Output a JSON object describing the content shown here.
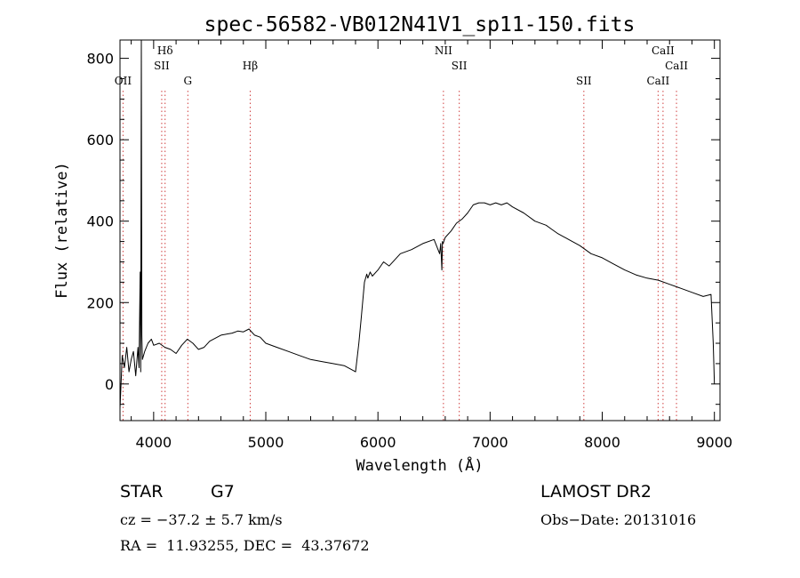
{
  "chart_data": {
    "type": "line",
    "title": "spec-56582-VB012N41V1_sp11-150.fits",
    "xlabel": "Wavelength (Å)",
    "ylabel": "Flux (relative)",
    "xlim": [
      3700,
      9050
    ],
    "ylim": [
      -90,
      845
    ],
    "x_ticks": [
      4000,
      5000,
      6000,
      7000,
      8000,
      9000
    ],
    "y_ticks": [
      0,
      200,
      400,
      600,
      800
    ],
    "grid": false,
    "legend": "none",
    "line_color": "#000000",
    "marker_color": "#d04040",
    "line_markers": [
      {
        "label": "OII",
        "x": 3727,
        "row": 3
      },
      {
        "label": "Hδ",
        "x": 4102,
        "row": 1
      },
      {
        "label": "SII",
        "x": 4072,
        "row": 2
      },
      {
        "label": "G",
        "x": 4305,
        "row": 3
      },
      {
        "label": "Hβ",
        "x": 4861,
        "row": 2
      },
      {
        "label": "NII",
        "x": 6584,
        "row": 1
      },
      {
        "label": "SII",
        "x": 6725,
        "row": 2
      },
      {
        "label": "SII",
        "x": 7836,
        "row": 3
      },
      {
        "label": "CaII",
        "x": 8542,
        "row": 1
      },
      {
        "label": "CaII",
        "x": 8662,
        "row": 2
      },
      {
        "label": "CaII",
        "x": 8498,
        "row": 3
      }
    ],
    "series": [
      {
        "x": [
          3700,
          3720,
          3740,
          3760,
          3780,
          3800,
          3820,
          3840,
          3860,
          3870,
          3880,
          3885,
          3890,
          3895,
          3900,
          3920,
          3950,
          3980,
          4000,
          4050,
          4100,
          4150,
          4200,
          4250,
          4300,
          4350,
          4400,
          4450,
          4500,
          4600,
          4700,
          4750,
          4800,
          4850,
          4900,
          4950,
          5000,
          5100,
          5200,
          5300,
          5400,
          5500,
          5600,
          5700,
          5800,
          5830,
          5850,
          5880,
          5900,
          5910,
          5930,
          5950,
          6000,
          6050,
          6100,
          6150,
          6200,
          6300,
          6400,
          6500,
          6550,
          6560,
          6570,
          6575,
          6580,
          6600,
          6650,
          6700,
          6750,
          6800,
          6850,
          6900,
          6950,
          7000,
          7050,
          7100,
          7150,
          7200,
          7300,
          7400,
          7500,
          7550,
          7600,
          7700,
          7800,
          7900,
          8000,
          8100,
          8200,
          8300,
          8400,
          8500,
          8600,
          8700,
          8800,
          8900,
          8970,
          8990,
          9000
        ],
        "y": [
          -60,
          70,
          40,
          90,
          30,
          60,
          80,
          20,
          90,
          40,
          275,
          30,
          845,
          120,
          60,
          80,
          100,
          110,
          95,
          100,
          90,
          85,
          75,
          95,
          110,
          100,
          85,
          90,
          105,
          120,
          125,
          130,
          128,
          135,
          120,
          115,
          100,
          90,
          80,
          70,
          60,
          55,
          50,
          45,
          30,
          100,
          160,
          250,
          270,
          260,
          275,
          265,
          280,
          300,
          290,
          305,
          320,
          330,
          345,
          355,
          320,
          345,
          280,
          350,
          345,
          360,
          375,
          395,
          405,
          420,
          440,
          445,
          445,
          440,
          445,
          440,
          445,
          435,
          420,
          400,
          390,
          380,
          370,
          355,
          340,
          320,
          310,
          295,
          280,
          268,
          260,
          255,
          245,
          235,
          225,
          215,
          220,
          100,
          0
        ]
      }
    ]
  },
  "info": {
    "object_class": "STAR",
    "subclass": "G7",
    "survey": "LAMOST DR2",
    "cz": "cz = −37.2 ± 5.7 km/s",
    "obs_date": "Obs−Date: 20131016",
    "coords": "RA =  11.93255, DEC =  43.37672"
  }
}
